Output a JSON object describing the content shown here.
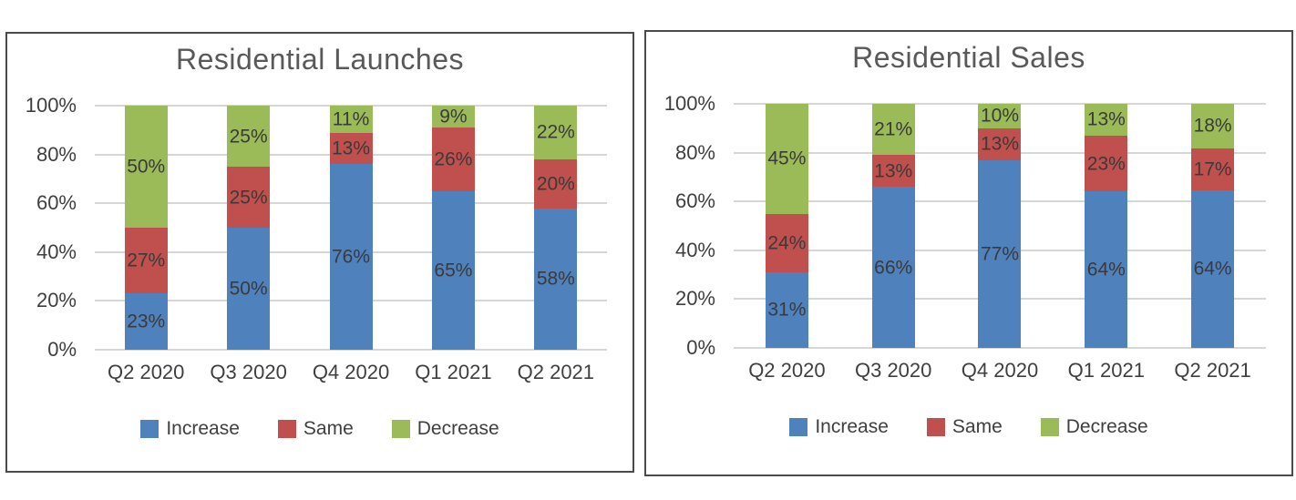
{
  "page": {
    "background": "#ffffff"
  },
  "chart_data": [
    {
      "type": "bar",
      "stacked": true,
      "percent_stacked": true,
      "title": "Residential Launches",
      "categories": [
        "Q2 2020",
        "Q3 2020",
        "Q4 2020",
        "Q1 2021",
        "Q2 2021"
      ],
      "series": [
        {
          "name": "Increase",
          "color": "#4f81bd",
          "values": [
            23,
            50,
            76,
            65,
            58
          ]
        },
        {
          "name": "Same",
          "color": "#c0504d",
          "values": [
            27,
            25,
            13,
            26,
            20
          ]
        },
        {
          "name": "Decrease",
          "color": "#9bbb59",
          "values": [
            50,
            25,
            11,
            9,
            22
          ]
        }
      ],
      "y_ticks": [
        "0%",
        "20%",
        "40%",
        "60%",
        "80%",
        "100%"
      ],
      "ylim": [
        0,
        100
      ],
      "xlabel": "",
      "ylabel": "",
      "grid": true,
      "legend_position": "bottom",
      "data_label_suffix": "%"
    },
    {
      "type": "bar",
      "stacked": true,
      "percent_stacked": true,
      "title": "Residential Sales",
      "categories": [
        "Q2 2020",
        "Q3 2020",
        "Q4 2020",
        "Q1 2021",
        "Q2 2021"
      ],
      "series": [
        {
          "name": "Increase",
          "color": "#4f81bd",
          "values": [
            31,
            66,
            77,
            64,
            64
          ]
        },
        {
          "name": "Same",
          "color": "#c0504d",
          "values": [
            24,
            13,
            13,
            23,
            17
          ]
        },
        {
          "name": "Decrease",
          "color": "#9bbb59",
          "values": [
            45,
            21,
            10,
            13,
            18
          ]
        }
      ],
      "y_ticks": [
        "0%",
        "20%",
        "40%",
        "60%",
        "80%",
        "100%"
      ],
      "ylim": [
        0,
        100
      ],
      "xlabel": "",
      "ylabel": "",
      "grid": true,
      "legend_position": "bottom",
      "data_label_suffix": "%"
    }
  ],
  "colors": {
    "increase": "#4f81bd",
    "same": "#c0504d",
    "decrease": "#9bbb59",
    "title_text": "#595959",
    "axis_text": "#3f3f3f",
    "data_label_text": "#3a3a3a",
    "gridline": "#d6d6d6",
    "panel_border": "#4a4a4a"
  }
}
